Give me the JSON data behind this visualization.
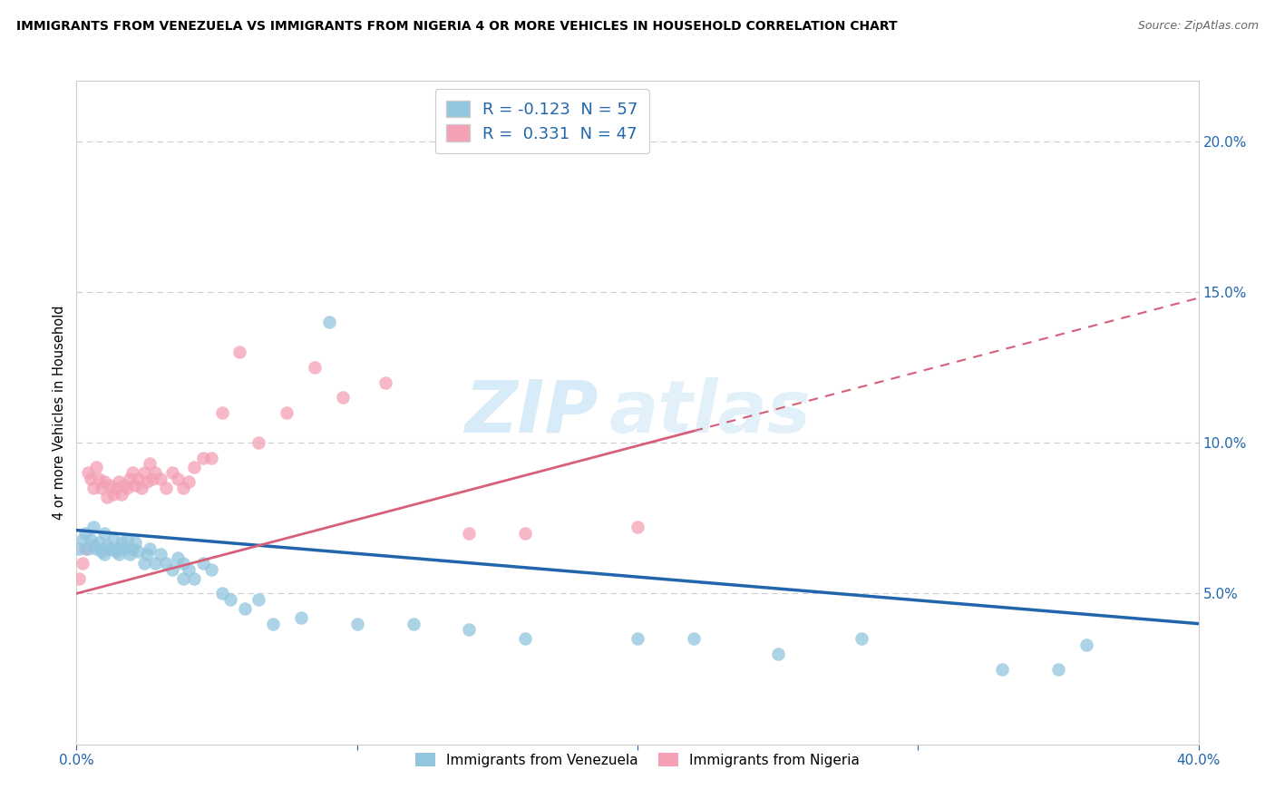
{
  "title": "IMMIGRANTS FROM VENEZUELA VS IMMIGRANTS FROM NIGERIA 4 OR MORE VEHICLES IN HOUSEHOLD CORRELATION CHART",
  "source": "Source: ZipAtlas.com",
  "ylabel": "4 or more Vehicles in Household",
  "xlim": [
    0.0,
    0.4
  ],
  "ylim": [
    0.0,
    0.22
  ],
  "yticks_right": [
    0.05,
    0.1,
    0.15,
    0.2
  ],
  "ytick_right_labels": [
    "5.0%",
    "10.0%",
    "15.0%",
    "20.0%"
  ],
  "legend_blue_label": "Immigrants from Venezuela",
  "legend_pink_label": "Immigrants from Nigeria",
  "r_blue": -0.123,
  "n_blue": 57,
  "r_pink": 0.331,
  "n_pink": 47,
  "blue_color": "#92c5de",
  "pink_color": "#f4a0b5",
  "blue_line_color": "#2166ac",
  "pink_line_color": "#d6607a",
  "watermark_1": "ZIP",
  "watermark_2": "atlas",
  "blue_line_x0": 0.0,
  "blue_line_y0": 0.071,
  "blue_line_x1": 0.4,
  "blue_line_y1": 0.04,
  "pink_line_x0": 0.0,
  "pink_line_y0": 0.05,
  "pink_line_x1": 0.4,
  "pink_line_y1": 0.148,
  "blue_scatter_x": [
    0.001,
    0.002,
    0.003,
    0.004,
    0.005,
    0.006,
    0.006,
    0.007,
    0.008,
    0.009,
    0.01,
    0.01,
    0.011,
    0.012,
    0.013,
    0.014,
    0.015,
    0.015,
    0.016,
    0.017,
    0.018,
    0.019,
    0.02,
    0.021,
    0.022,
    0.024,
    0.025,
    0.026,
    0.028,
    0.03,
    0.032,
    0.034,
    0.036,
    0.038,
    0.04,
    0.042,
    0.045,
    0.048,
    0.052,
    0.055,
    0.06,
    0.065,
    0.07,
    0.08,
    0.09,
    0.1,
    0.12,
    0.14,
    0.16,
    0.2,
    0.22,
    0.25,
    0.28,
    0.33,
    0.35,
    0.36,
    0.038
  ],
  "blue_scatter_y": [
    0.065,
    0.068,
    0.07,
    0.065,
    0.068,
    0.066,
    0.072,
    0.065,
    0.067,
    0.064,
    0.07,
    0.063,
    0.066,
    0.065,
    0.068,
    0.064,
    0.065,
    0.063,
    0.067,
    0.065,
    0.068,
    0.063,
    0.065,
    0.067,
    0.064,
    0.06,
    0.063,
    0.065,
    0.06,
    0.063,
    0.06,
    0.058,
    0.062,
    0.06,
    0.058,
    0.055,
    0.06,
    0.058,
    0.05,
    0.048,
    0.045,
    0.048,
    0.04,
    0.042,
    0.14,
    0.04,
    0.04,
    0.038,
    0.035,
    0.035,
    0.035,
    0.03,
    0.035,
    0.025,
    0.025,
    0.033,
    0.055
  ],
  "pink_scatter_x": [
    0.001,
    0.002,
    0.003,
    0.004,
    0.005,
    0.006,
    0.007,
    0.008,
    0.009,
    0.01,
    0.011,
    0.012,
    0.013,
    0.014,
    0.015,
    0.016,
    0.017,
    0.018,
    0.019,
    0.02,
    0.021,
    0.022,
    0.023,
    0.024,
    0.025,
    0.026,
    0.027,
    0.028,
    0.03,
    0.032,
    0.034,
    0.036,
    0.038,
    0.04,
    0.042,
    0.045,
    0.048,
    0.052,
    0.058,
    0.065,
    0.075,
    0.085,
    0.095,
    0.11,
    0.14,
    0.16,
    0.2
  ],
  "pink_scatter_y": [
    0.055,
    0.06,
    0.065,
    0.09,
    0.088,
    0.085,
    0.092,
    0.088,
    0.085,
    0.087,
    0.082,
    0.086,
    0.083,
    0.085,
    0.087,
    0.083,
    0.086,
    0.085,
    0.088,
    0.09,
    0.086,
    0.088,
    0.085,
    0.09,
    0.087,
    0.093,
    0.088,
    0.09,
    0.088,
    0.085,
    0.09,
    0.088,
    0.085,
    0.087,
    0.092,
    0.095,
    0.095,
    0.11,
    0.13,
    0.1,
    0.11,
    0.125,
    0.115,
    0.12,
    0.07,
    0.07,
    0.072
  ]
}
